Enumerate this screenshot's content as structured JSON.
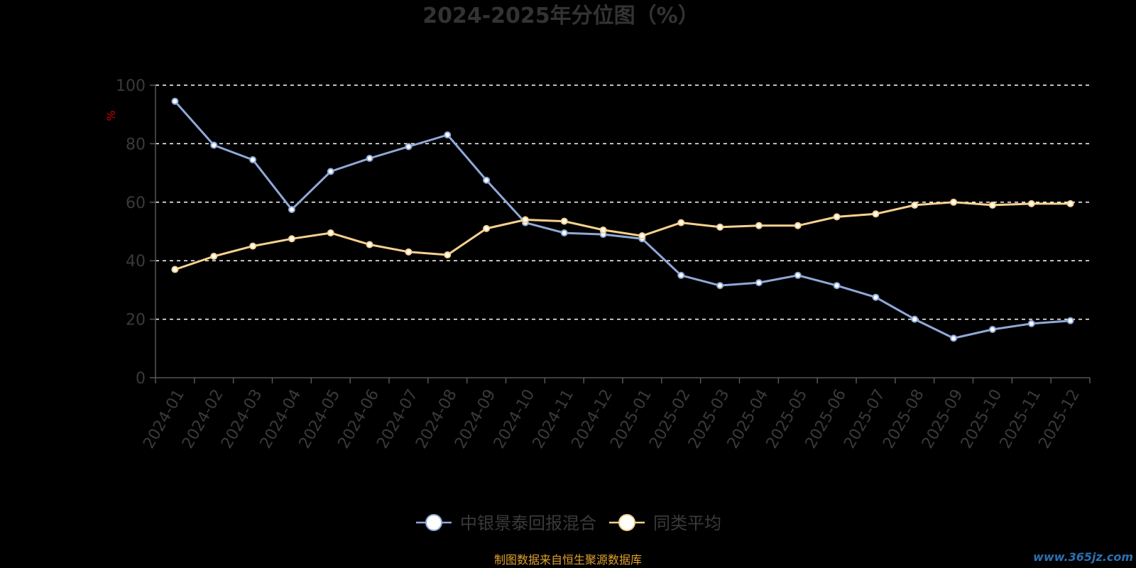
{
  "chart_data": {
    "type": "line",
    "title": "2024-2025年分位图（%）",
    "ylabel": "%",
    "ylim": [
      0,
      100
    ],
    "y_ticks": [
      0,
      20,
      40,
      60,
      80,
      100
    ],
    "grid": true,
    "legend_position": "bottom",
    "categories": [
      "2024-01",
      "2024-02",
      "2024-03",
      "2024-04",
      "2024-05",
      "2024-06",
      "2024-07",
      "2024-08",
      "2024-09",
      "2024-10",
      "2024-11",
      "2024-12",
      "2025-01",
      "2025-02",
      "2025-03",
      "2025-04",
      "2025-05",
      "2025-06",
      "2025-07",
      "2025-08",
      "2025-09",
      "2025-10",
      "2025-11",
      "2025-12"
    ],
    "series": [
      {
        "name": "中银景泰回报混合",
        "color": "#8fa9d8",
        "values": [
          94.5,
          79.5,
          74.5,
          57.5,
          70.5,
          75,
          79,
          83,
          67.5,
          53,
          49.5,
          49,
          47.5,
          35,
          31.5,
          32.5,
          35,
          31.5,
          27.5,
          20,
          13.5,
          16.5,
          18.5,
          19.5
        ]
      },
      {
        "name": "同类平均",
        "color": "#f5d18e",
        "values": [
          37,
          41.5,
          45,
          47.5,
          49.5,
          45.5,
          43,
          42,
          51,
          54,
          53.5,
          50.5,
          48.5,
          53,
          51.5,
          52,
          52,
          55,
          56,
          59,
          60,
          59,
          59.5,
          59.5
        ]
      }
    ]
  },
  "footer": {
    "source": "制图数据来自恒生聚源数据库",
    "watermark": "www.365jz.com"
  }
}
